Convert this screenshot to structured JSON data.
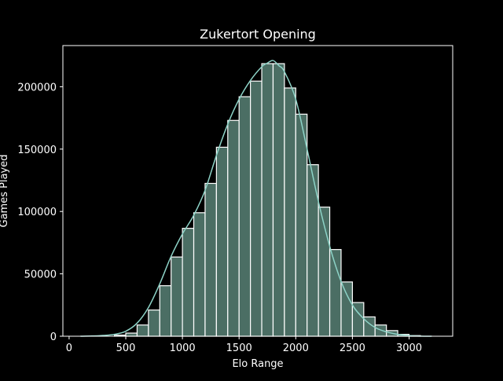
{
  "chart_data": {
    "type": "bar",
    "title": "Zukertort Opening",
    "xlabel": "Elo Range",
    "ylabel": "Games Played",
    "xlim": [
      -55,
      3385
    ],
    "ylim": [
      0,
      233000
    ],
    "xticks": [
      0,
      500,
      1000,
      1500,
      2000,
      2500,
      3000
    ],
    "xtick_labels": [
      "0",
      "500",
      "1000",
      "1500",
      "2000",
      "2500",
      "3000"
    ],
    "yticks": [
      0,
      50000,
      100000,
      150000,
      200000
    ],
    "ytick_labels": [
      "0",
      "50000",
      "100000",
      "150000",
      "200000"
    ],
    "bin_width": 100,
    "bin_starts": [
      100,
      200,
      300,
      400,
      500,
      600,
      700,
      800,
      900,
      1000,
      1100,
      1200,
      1300,
      1400,
      1500,
      1600,
      1700,
      1800,
      1900,
      2000,
      2100,
      2200,
      2300,
      2400,
      2500,
      2600,
      2700,
      2800,
      2900,
      3000,
      3100
    ],
    "values": [
      0,
      0,
      0,
      900,
      2500,
      9000,
      21000,
      40500,
      63500,
      86500,
      99000,
      122500,
      151500,
      173000,
      192000,
      204500,
      218500,
      218500,
      199000,
      178000,
      137500,
      103500,
      69500,
      43500,
      27000,
      15500,
      9000,
      4500,
      1500,
      500,
      0
    ],
    "kde": {
      "x": [
        100,
        200,
        300,
        400,
        500,
        600,
        700,
        800,
        900,
        1000,
        1100,
        1200,
        1300,
        1400,
        1500,
        1600,
        1700,
        1750,
        1800,
        1850,
        1900,
        2000,
        2100,
        2200,
        2300,
        2400,
        2500,
        2600,
        2700,
        2800,
        2900,
        3000,
        3100,
        3200
      ],
      "y": [
        0,
        200,
        600,
        1500,
        4000,
        10500,
        23000,
        42000,
        64000,
        82000,
        97000,
        117000,
        145000,
        170000,
        190000,
        205000,
        216000,
        219000,
        221000,
        217000,
        212000,
        190000,
        150000,
        108000,
        72000,
        44000,
        25000,
        14000,
        7000,
        3500,
        1500,
        500,
        100,
        0
      ]
    },
    "colors": {
      "bar_fill": "#4b6e64",
      "bar_edge": "#ffffff",
      "kde_line": "#8dd3c7",
      "background": "#000000",
      "text": "#ffffff"
    },
    "grid": false,
    "legend": "none"
  }
}
